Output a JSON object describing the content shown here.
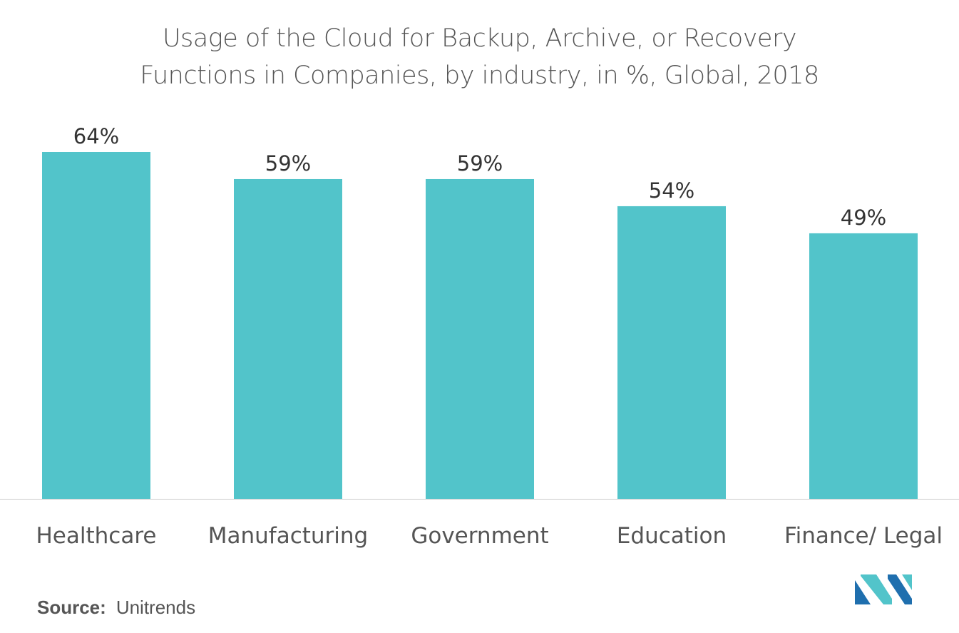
{
  "title_line1": "Usage of the Cloud for Backup, Archive, or Recovery",
  "title_line2": "Functions in Companies, by industry, in %, Global, 2018",
  "source_label": "Source:",
  "source_text": "Unitrends",
  "logo_icon": "mordor-intelligence-logo-icon",
  "colors": {
    "bar": "#52C4CA",
    "axis": "#cccccc",
    "text": "#555555",
    "logo_dark": "#1f6fae",
    "logo_light": "#52C4CA"
  },
  "chart_data": {
    "type": "bar",
    "title": "Usage of the Cloud for Backup, Archive, or Recovery Functions in Companies, by industry, in %, Global, 2018",
    "categories": [
      "Healthcare",
      "Manufacturing",
      "Government",
      "Education",
      "Finance/ Legal"
    ],
    "values": [
      64,
      59,
      59,
      54,
      49
    ],
    "data_labels": [
      "64%",
      "59%",
      "59%",
      "54%",
      "49%"
    ],
    "xlabel": "",
    "ylabel": "",
    "ylim": [
      0,
      64
    ],
    "grid": false,
    "legend": "none"
  }
}
